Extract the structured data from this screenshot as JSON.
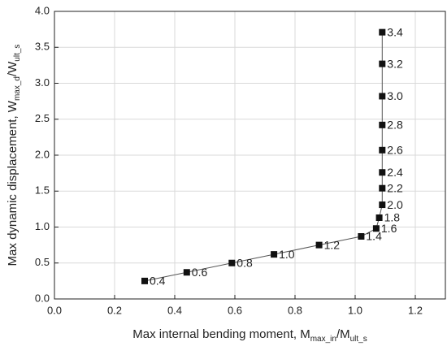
{
  "chart_data": {
    "type": "scatter",
    "xlabel": [
      "Max internal bending moment, M",
      "max_in",
      "/M",
      "ult_s"
    ],
    "ylabel": [
      "Max dynamic displacement, W",
      "max_d",
      "/W",
      "ult_s"
    ],
    "x": [
      0.3,
      0.44,
      0.59,
      0.73,
      0.88,
      1.02,
      1.07,
      1.08,
      1.09,
      1.09,
      1.09,
      1.09,
      1.09,
      1.09,
      1.09,
      1.09
    ],
    "series": [
      {
        "color": "#111111",
        "line_color": "#555555",
        "values": [
          0.25,
          0.37,
          0.5,
          0.62,
          0.75,
          0.87,
          0.98,
          1.13,
          1.31,
          1.54,
          1.76,
          2.07,
          2.42,
          2.82,
          3.27,
          3.71
        ],
        "point_labels": [
          "0.4",
          "0.6",
          "0.8",
          "1.0",
          "1.2",
          "1.4",
          "1.6",
          "1.8",
          "2.0",
          "2.2",
          "2.4",
          "2.6",
          "2.8",
          "3.0",
          "3.2",
          "3.4"
        ]
      }
    ],
    "xlim": [
      0,
      1.3
    ],
    "xticks": [
      {
        "value": 0,
        "label": "0.0"
      },
      {
        "value": 0.2,
        "label": "0.2"
      },
      {
        "value": 0.4,
        "label": "0.4"
      },
      {
        "value": 0.6,
        "label": "0.6"
      },
      {
        "value": 0.8,
        "label": "0.8"
      },
      {
        "value": 1.0,
        "label": "1.0"
      },
      {
        "value": 1.2,
        "label": "1.2"
      }
    ],
    "ylim": [
      0,
      4
    ],
    "yticks": [
      {
        "value": 0,
        "label": "0.0"
      },
      {
        "value": 0.5,
        "label": "0.5"
      },
      {
        "value": 1.0,
        "label": "1.0"
      },
      {
        "value": 1.5,
        "label": "1.5"
      },
      {
        "value": 2.0,
        "label": "2.0"
      },
      {
        "value": 2.5,
        "label": "2.5"
      },
      {
        "value": 3.0,
        "label": "3.0"
      },
      {
        "value": 3.5,
        "label": "3.5"
      },
      {
        "value": 4.0,
        "label": "4.0"
      }
    ],
    "grid": true
  }
}
